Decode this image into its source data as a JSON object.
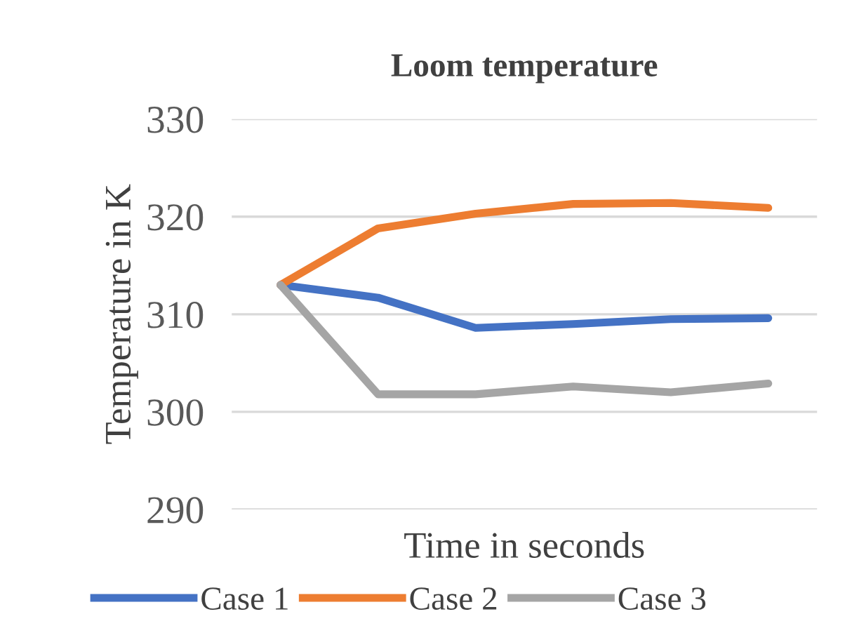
{
  "chart_data": {
    "type": "line",
    "title": "Loom temperature",
    "xlabel": "Time in seconds",
    "ylabel": "Temperature in K",
    "categories": [
      null,
      null,
      null,
      null,
      null,
      null
    ],
    "series": [
      {
        "name": "Case 1",
        "color": "#4472c4",
        "values": [
          313,
          311.7,
          308.6,
          309.0,
          309.5,
          309.6
        ]
      },
      {
        "name": "Case 2",
        "color": "#ed7d31",
        "values": [
          313,
          318.8,
          320.3,
          321.3,
          321.4,
          320.9
        ]
      },
      {
        "name": "Case 3",
        "color": "#a5a5a5",
        "values": [
          313,
          301.8,
          301.8,
          302.6,
          302.0,
          302.9
        ]
      }
    ],
    "ylim": [
      290,
      330
    ],
    "yticks": [
      290,
      300,
      310,
      320,
      330
    ],
    "grid": "y",
    "legend": "bottom",
    "marker": "none",
    "line_style": "solid"
  }
}
